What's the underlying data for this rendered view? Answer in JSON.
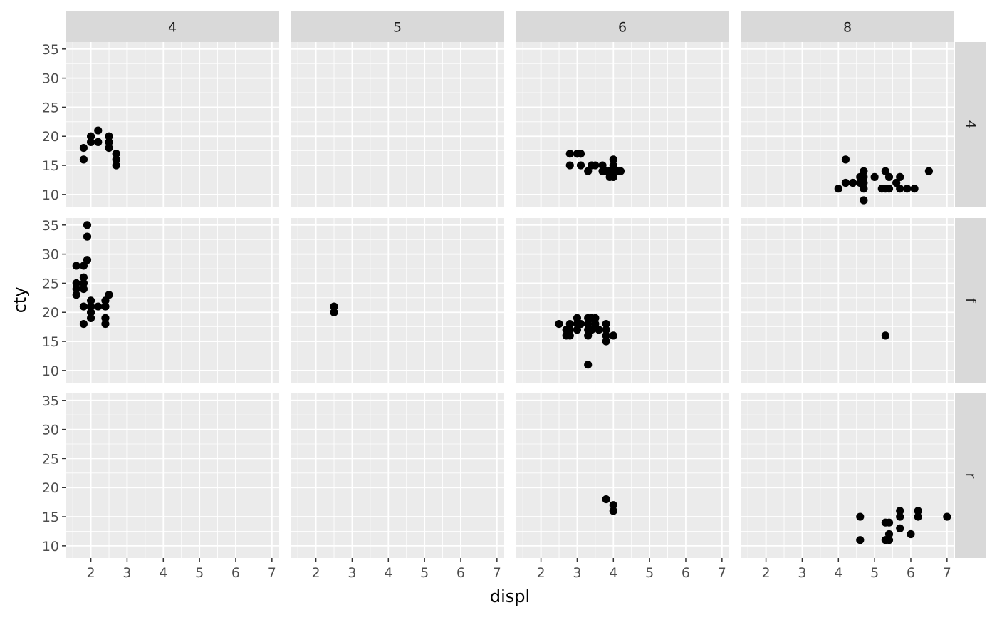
{
  "chart_data": {
    "type": "scatter",
    "layout": "facet_grid",
    "xlabel": "displ",
    "ylabel": "cty",
    "xlim": [
      1.3,
      7.2
    ],
    "ylim": [
      7.9,
      36.2
    ],
    "x_ticks": [
      2,
      3,
      4,
      5,
      6,
      7
    ],
    "y_ticks": [
      10,
      15,
      20,
      25,
      30,
      35
    ],
    "grid": true,
    "col_facets": [
      "4",
      "5",
      "6",
      "8"
    ],
    "row_facets": [
      "4",
      "f",
      "r"
    ],
    "panels": [
      {
        "row": "4",
        "col": "4",
        "points": [
          [
            1.8,
            18
          ],
          [
            1.8,
            16
          ],
          [
            2.0,
            20
          ],
          [
            2.0,
            19
          ],
          [
            2.2,
            21
          ],
          [
            2.2,
            19
          ],
          [
            2.5,
            20
          ],
          [
            2.5,
            19
          ],
          [
            2.5,
            18
          ],
          [
            2.7,
            17
          ],
          [
            2.7,
            16
          ],
          [
            2.7,
            15
          ]
        ]
      },
      {
        "row": "4",
        "col": "5",
        "points": []
      },
      {
        "row": "4",
        "col": "6",
        "points": [
          [
            2.8,
            17
          ],
          [
            2.8,
            15
          ],
          [
            3.0,
            17
          ],
          [
            3.1,
            17
          ],
          [
            3.1,
            15
          ],
          [
            3.3,
            14
          ],
          [
            3.4,
            15
          ],
          [
            3.5,
            15
          ],
          [
            3.7,
            15
          ],
          [
            3.7,
            14
          ],
          [
            3.8,
            14
          ],
          [
            3.9,
            14
          ],
          [
            3.9,
            13
          ],
          [
            4.0,
            16
          ],
          [
            4.0,
            15
          ],
          [
            4.0,
            14
          ],
          [
            4.0,
            13
          ],
          [
            4.1,
            14
          ],
          [
            4.2,
            14
          ]
        ]
      },
      {
        "row": "4",
        "col": "8",
        "points": [
          [
            4.0,
            11
          ],
          [
            4.2,
            16
          ],
          [
            4.2,
            12
          ],
          [
            4.4,
            12
          ],
          [
            4.6,
            13
          ],
          [
            4.6,
            12
          ],
          [
            4.7,
            14
          ],
          [
            4.7,
            13
          ],
          [
            4.7,
            12
          ],
          [
            4.7,
            11
          ],
          [
            4.7,
            9
          ],
          [
            5.0,
            13
          ],
          [
            5.2,
            11
          ],
          [
            5.3,
            14
          ],
          [
            5.3,
            11
          ],
          [
            5.4,
            13
          ],
          [
            5.4,
            11
          ],
          [
            5.6,
            12
          ],
          [
            5.7,
            13
          ],
          [
            5.7,
            11
          ],
          [
            5.9,
            11
          ],
          [
            6.1,
            11
          ],
          [
            6.5,
            14
          ]
        ]
      },
      {
        "row": "f",
        "col": "4",
        "points": [
          [
            1.6,
            28
          ],
          [
            1.6,
            25
          ],
          [
            1.6,
            24
          ],
          [
            1.6,
            23
          ],
          [
            1.8,
            28
          ],
          [
            1.8,
            26
          ],
          [
            1.8,
            25
          ],
          [
            1.8,
            24
          ],
          [
            1.8,
            21
          ],
          [
            1.8,
            18
          ],
          [
            1.9,
            35
          ],
          [
            1.9,
            33
          ],
          [
            1.9,
            29
          ],
          [
            2.0,
            22
          ],
          [
            2.0,
            21
          ],
          [
            2.0,
            20
          ],
          [
            2.0,
            19
          ],
          [
            2.2,
            21
          ],
          [
            2.4,
            22
          ],
          [
            2.4,
            21
          ],
          [
            2.4,
            19
          ],
          [
            2.4,
            18
          ],
          [
            2.5,
            23
          ]
        ]
      },
      {
        "row": "f",
        "col": "5",
        "points": [
          [
            2.5,
            21
          ],
          [
            2.5,
            20
          ]
        ]
      },
      {
        "row": "f",
        "col": "6",
        "points": [
          [
            2.5,
            18
          ],
          [
            2.7,
            17
          ],
          [
            2.7,
            16
          ],
          [
            2.8,
            18
          ],
          [
            2.8,
            17
          ],
          [
            2.8,
            16
          ],
          [
            3.0,
            19
          ],
          [
            3.0,
            18
          ],
          [
            3.0,
            17
          ],
          [
            3.1,
            18
          ],
          [
            3.3,
            19
          ],
          [
            3.3,
            18
          ],
          [
            3.3,
            17
          ],
          [
            3.3,
            16
          ],
          [
            3.3,
            11
          ],
          [
            3.4,
            19
          ],
          [
            3.4,
            17
          ],
          [
            3.5,
            19
          ],
          [
            3.5,
            18
          ],
          [
            3.6,
            17
          ],
          [
            3.8,
            18
          ],
          [
            3.8,
            17
          ],
          [
            3.8,
            16
          ],
          [
            3.8,
            15
          ],
          [
            4.0,
            16
          ]
        ]
      },
      {
        "row": "f",
        "col": "8",
        "points": [
          [
            5.3,
            16
          ]
        ]
      },
      {
        "row": "r",
        "col": "4",
        "points": []
      },
      {
        "row": "r",
        "col": "5",
        "points": []
      },
      {
        "row": "r",
        "col": "6",
        "points": [
          [
            3.8,
            18
          ],
          [
            4.0,
            17
          ],
          [
            4.0,
            16
          ]
        ]
      },
      {
        "row": "r",
        "col": "8",
        "points": [
          [
            4.6,
            15
          ],
          [
            4.6,
            11
          ],
          [
            5.3,
            14
          ],
          [
            5.3,
            11
          ],
          [
            5.4,
            14
          ],
          [
            5.4,
            12
          ],
          [
            5.4,
            11
          ],
          [
            5.7,
            16
          ],
          [
            5.7,
            15
          ],
          [
            5.7,
            13
          ],
          [
            6.0,
            12
          ],
          [
            6.2,
            16
          ],
          [
            6.2,
            15
          ],
          [
            7.0,
            15
          ]
        ]
      }
    ]
  }
}
